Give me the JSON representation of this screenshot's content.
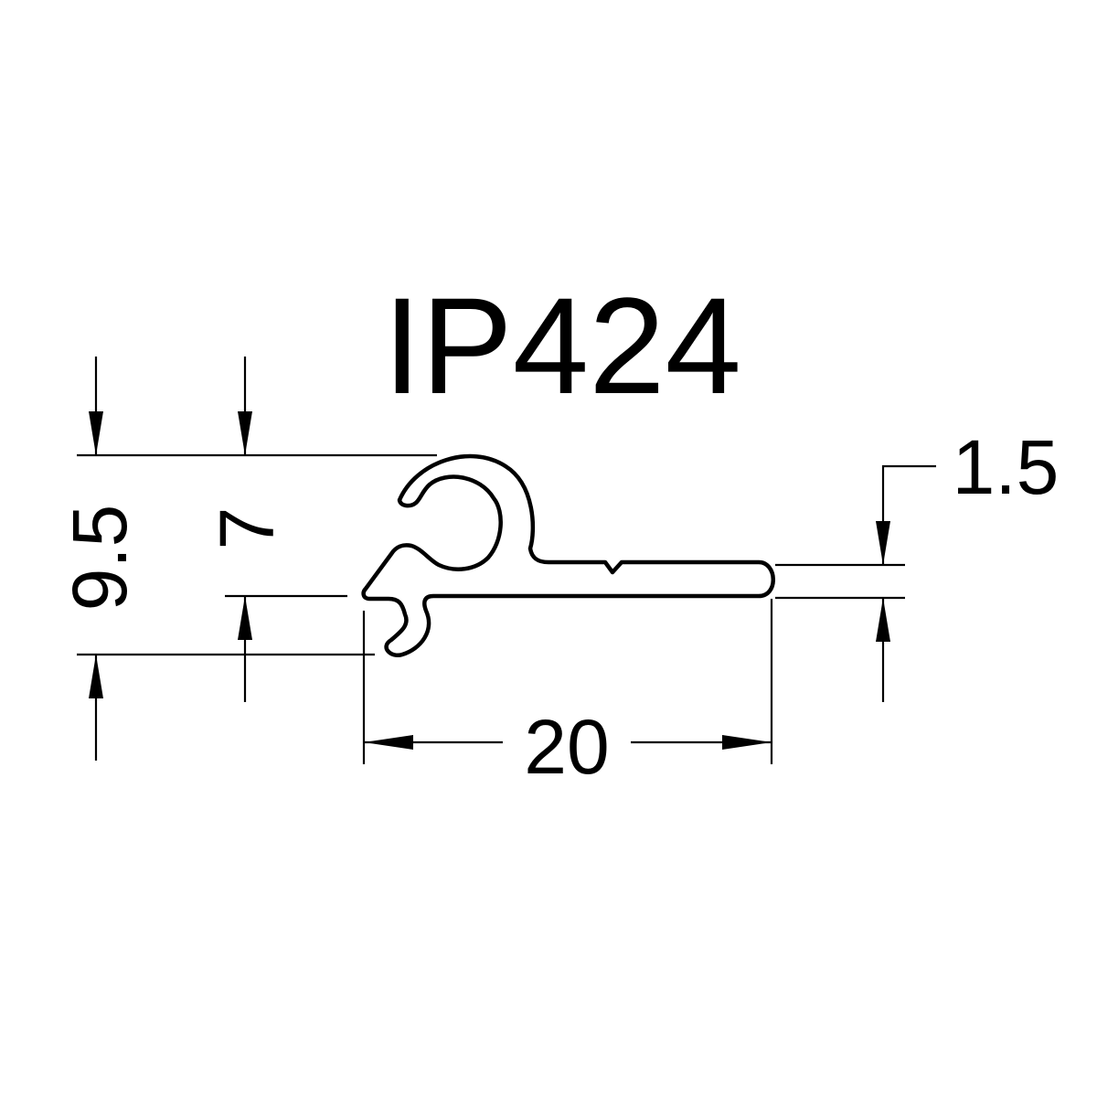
{
  "title": "IP424",
  "dimensions": {
    "total_height": "9.5",
    "lower_height": "7",
    "width": "20",
    "thickness": "1.5"
  }
}
